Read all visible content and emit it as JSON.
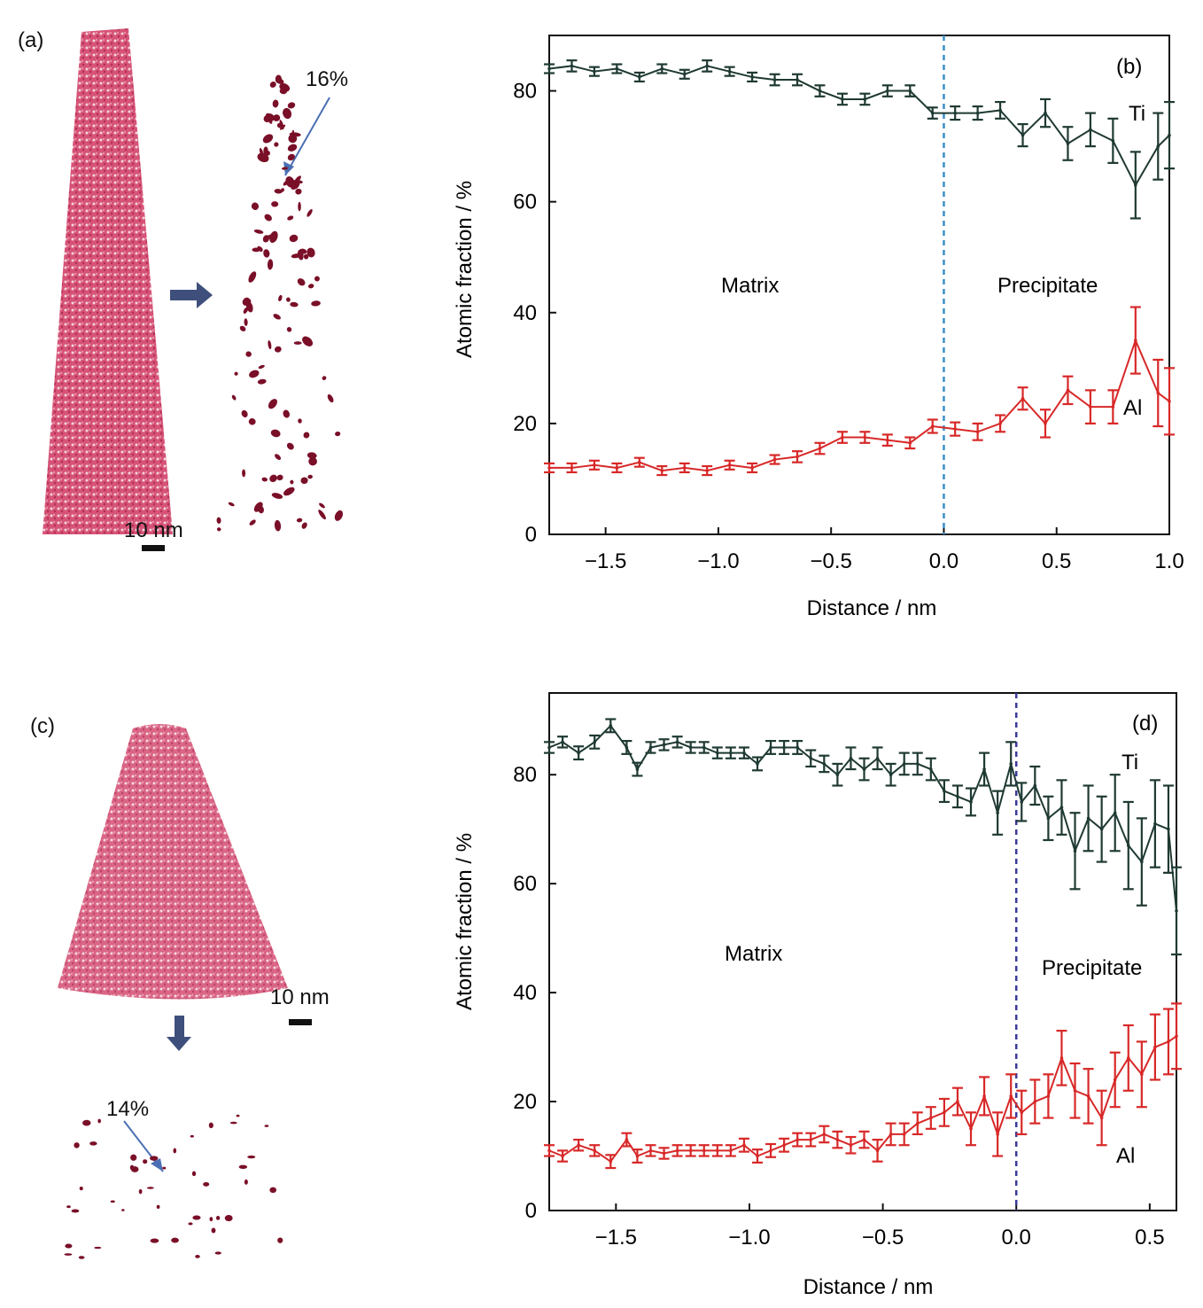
{
  "panels": {
    "a": {
      "label": "(a)",
      "scale_bar": "10 nm",
      "percentage": "16%",
      "colors": {
        "cloud": "#c8305a",
        "cluster": "#7a0f28",
        "arrow": "#3e4f7c",
        "pointer": "#4a6fb4"
      }
    },
    "c": {
      "label": "(c)",
      "scale_bar": "10 nm",
      "percentage": "14%"
    }
  },
  "chart_data": [
    {
      "id": "b",
      "type": "line",
      "panel_label": "(b)",
      "xlabel": "Distance / nm",
      "ylabel": "Atomic fraction / %",
      "xlim": [
        -1.75,
        1.0
      ],
      "ylim": [
        0,
        90
      ],
      "xticks": [
        -1.5,
        -1.0,
        -0.5,
        0.0,
        0.5,
        1.0
      ],
      "xtick_labels": [
        "−1.5",
        "−1.0",
        "−0.5",
        "0.0",
        "0.5",
        "1.0"
      ],
      "yticks": [
        0,
        20,
        40,
        60,
        80
      ],
      "ytick_labels": [
        "0",
        "20",
        "40",
        "60",
        "80"
      ],
      "interface_x": 0.0,
      "interface_color": "#3a8fc8",
      "region_labels": {
        "left": "Matrix",
        "right": "Precipitate"
      },
      "grid": false,
      "series": [
        {
          "name": "Ti",
          "color": "#1f3a33",
          "x": [
            -1.75,
            -1.65,
            -1.55,
            -1.45,
            -1.35,
            -1.25,
            -1.15,
            -1.05,
            -0.95,
            -0.85,
            -0.75,
            -0.65,
            -0.55,
            -0.45,
            -0.35,
            -0.25,
            -0.15,
            -0.05,
            0.05,
            0.15,
            0.25,
            0.35,
            0.45,
            0.55,
            0.65,
            0.75,
            0.85,
            0.95,
            1.0
          ],
          "y": [
            84,
            84.5,
            83.5,
            84,
            82.5,
            84,
            83,
            84.5,
            83.5,
            82.5,
            82,
            82,
            80,
            78.5,
            78.5,
            80,
            80,
            76,
            76,
            76,
            76.5,
            72,
            76,
            70.5,
            73,
            71,
            63,
            70,
            72
          ],
          "err": [
            0.8,
            1.0,
            0.8,
            0.8,
            0.8,
            0.8,
            0.8,
            1.0,
            0.8,
            0.8,
            1.0,
            1.0,
            1.0,
            1.0,
            1.0,
            1.0,
            1.0,
            1.0,
            1.2,
            1.2,
            1.5,
            2,
            2.5,
            3,
            3,
            4,
            6,
            6,
            6
          ]
        },
        {
          "name": "Al",
          "color": "#d82828",
          "x": [
            -1.75,
            -1.65,
            -1.55,
            -1.45,
            -1.35,
            -1.25,
            -1.15,
            -1.05,
            -0.95,
            -0.85,
            -0.75,
            -0.65,
            -0.55,
            -0.45,
            -0.35,
            -0.25,
            -0.15,
            -0.05,
            0.05,
            0.15,
            0.25,
            0.35,
            0.45,
            0.55,
            0.65,
            0.75,
            0.85,
            0.95,
            1.0
          ],
          "y": [
            12,
            12,
            12.5,
            12,
            13,
            11.5,
            12,
            11.5,
            12.5,
            12,
            13.5,
            14,
            15.5,
            17.5,
            17.5,
            17,
            16.5,
            19.5,
            19,
            18.5,
            20,
            24.5,
            20,
            26,
            23,
            23,
            35,
            25.5,
            24
          ],
          "err": [
            0.8,
            0.8,
            0.8,
            0.8,
            0.8,
            0.8,
            0.8,
            0.8,
            0.8,
            0.8,
            0.8,
            1.0,
            1.0,
            1.0,
            1.0,
            1.0,
            1.0,
            1.2,
            1.2,
            1.5,
            1.5,
            2,
            2.5,
            2.5,
            3,
            3,
            6,
            6,
            6
          ]
        }
      ]
    },
    {
      "id": "d",
      "type": "line",
      "panel_label": "(d)",
      "xlabel": "Distance / nm",
      "ylabel": "Atomic fraction / %",
      "xlim": [
        -1.75,
        0.6
      ],
      "ylim": [
        0,
        95
      ],
      "xticks": [
        -1.5,
        -1.0,
        -0.5,
        0.0,
        0.5
      ],
      "xtick_labels": [
        "−1.5",
        "−1.0",
        "−0.5",
        "0.0",
        "0.5"
      ],
      "yticks": [
        0,
        20,
        40,
        60,
        80
      ],
      "ytick_labels": [
        "0",
        "20",
        "40",
        "60",
        "80"
      ],
      "interface_x": 0.0,
      "interface_color": "#3a3a9a",
      "region_labels": {
        "left": "Matrix",
        "right": "Precipitate"
      },
      "grid": false,
      "series": [
        {
          "name": "Ti",
          "color": "#1f3a33",
          "x": [
            -1.75,
            -1.7,
            -1.64,
            -1.58,
            -1.52,
            -1.46,
            -1.42,
            -1.37,
            -1.32,
            -1.27,
            -1.22,
            -1.17,
            -1.12,
            -1.07,
            -1.02,
            -0.97,
            -0.92,
            -0.87,
            -0.82,
            -0.77,
            -0.72,
            -0.67,
            -0.62,
            -0.57,
            -0.52,
            -0.47,
            -0.42,
            -0.37,
            -0.32,
            -0.27,
            -0.22,
            -0.17,
            -0.12,
            -0.07,
            -0.02,
            0.02,
            0.07,
            0.12,
            0.17,
            0.22,
            0.27,
            0.32,
            0.37,
            0.42,
            0.47,
            0.52,
            0.57,
            0.6
          ],
          "y": [
            85,
            86,
            84,
            86,
            89,
            85,
            81,
            85,
            85.5,
            86,
            85,
            85,
            84,
            84,
            84,
            82,
            85,
            85,
            85,
            83,
            82,
            80,
            83,
            81,
            83,
            80,
            82,
            82,
            81,
            77,
            76,
            75,
            81,
            73,
            82,
            75,
            78,
            72,
            74,
            66,
            72,
            70,
            73,
            67,
            64,
            71,
            70,
            55
          ],
          "err": [
            1,
            1,
            1.2,
            1.2,
            1.2,
            1.2,
            1.2,
            1,
            1,
            1,
            1,
            1,
            1,
            1,
            1,
            1.2,
            1.2,
            1.2,
            1.2,
            1.5,
            1.5,
            2,
            2,
            2,
            2,
            2,
            2,
            2,
            2,
            2,
            2,
            2.5,
            3,
            4,
            4,
            3.5,
            3.5,
            4,
            5,
            7,
            6,
            6,
            7,
            8,
            8,
            8,
            8,
            8
          ]
        },
        {
          "name": "Al",
          "color": "#d82828",
          "x": [
            -1.75,
            -1.7,
            -1.64,
            -1.58,
            -1.52,
            -1.46,
            -1.42,
            -1.37,
            -1.32,
            -1.27,
            -1.22,
            -1.17,
            -1.12,
            -1.07,
            -1.02,
            -0.97,
            -0.92,
            -0.87,
            -0.82,
            -0.77,
            -0.72,
            -0.67,
            -0.62,
            -0.57,
            -0.52,
            -0.47,
            -0.42,
            -0.37,
            -0.32,
            -0.27,
            -0.22,
            -0.17,
            -0.12,
            -0.07,
            -0.02,
            0.02,
            0.07,
            0.12,
            0.17,
            0.22,
            0.27,
            0.32,
            0.37,
            0.42,
            0.47,
            0.52,
            0.57,
            0.6
          ],
          "y": [
            11,
            10,
            12,
            11,
            9,
            13,
            10,
            11,
            10.5,
            11,
            11,
            11,
            11,
            11,
            12,
            10,
            11,
            12,
            13,
            13,
            14,
            13,
            12,
            13,
            11,
            14,
            14,
            16,
            17,
            18,
            20,
            15,
            21,
            14,
            21,
            18,
            20,
            21,
            28,
            22,
            21,
            17,
            24,
            28,
            25,
            30,
            31,
            32
          ],
          "err": [
            1,
            1,
            1,
            1,
            1.2,
            1.2,
            1.2,
            1,
            1,
            1,
            1,
            1,
            1,
            1,
            1.2,
            1.2,
            1.2,
            1.2,
            1.2,
            1.2,
            1.5,
            1.5,
            1.5,
            1.5,
            2,
            2,
            2,
            2,
            2,
            2.5,
            2.5,
            3,
            3.5,
            4,
            4,
            4,
            4,
            4,
            5,
            5,
            5,
            5,
            5,
            6,
            6,
            6,
            6,
            6
          ]
        }
      ]
    }
  ]
}
